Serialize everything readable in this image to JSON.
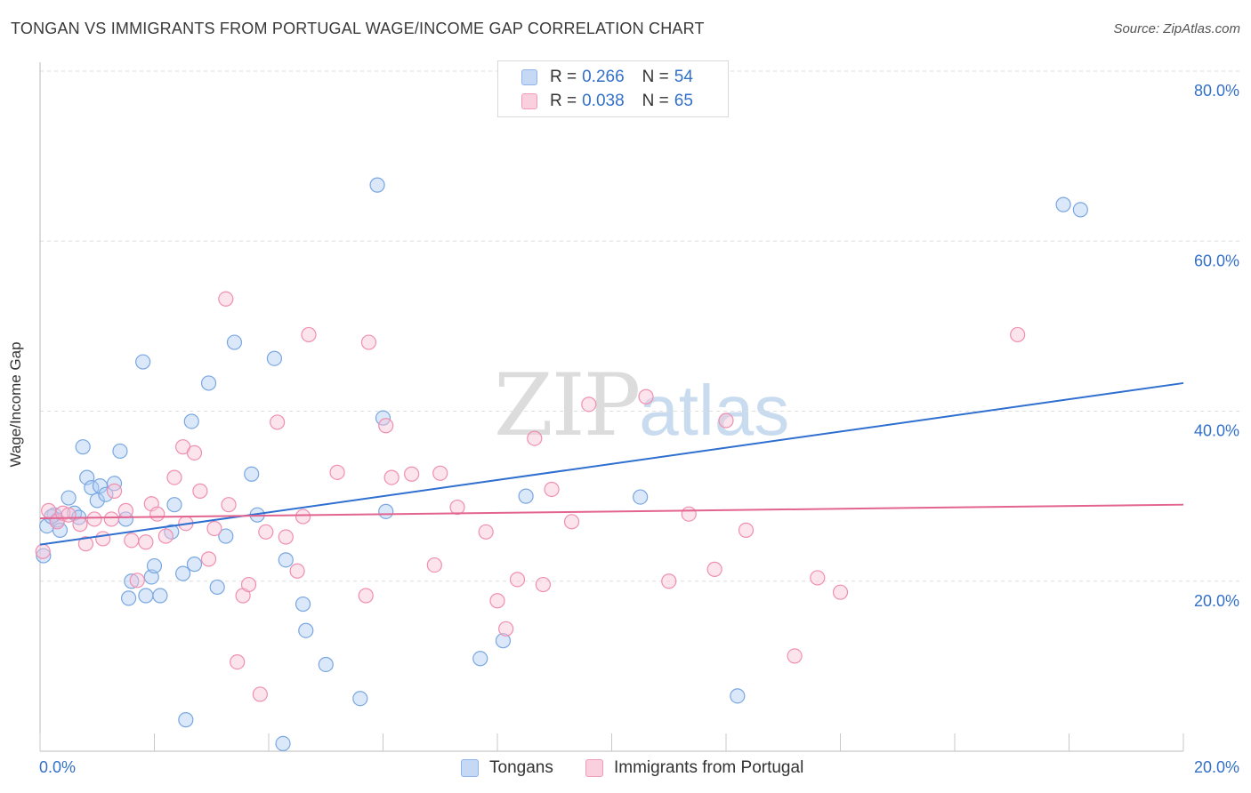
{
  "title": "TONGAN VS IMMIGRANTS FROM PORTUGAL WAGE/INCOME GAP CORRELATION CHART",
  "source": "Source: ZipAtlas.com",
  "watermark": {
    "zip": "ZIP",
    "atlas": "atlas"
  },
  "legend": {
    "rows": [
      {
        "r_label": "R =",
        "r_value": "0.266",
        "n_label": "N =",
        "n_value": "54",
        "color": "#8fb4e8",
        "fill": "#c5d9f4"
      },
      {
        "r_label": "R =",
        "r_value": "0.038",
        "n_label": "N =",
        "n_value": "65",
        "color": "#f29bb8",
        "fill": "#fad0de"
      }
    ]
  },
  "bottom_legend": [
    "Tongans",
    "Immigrants from Portugal"
  ],
  "chart_data": {
    "type": "scatter",
    "ylabel": "Wage/Income Gap",
    "xlim": [
      0,
      20
    ],
    "ylim": [
      0,
      80
    ],
    "x_tick_labels": [
      "0.0%",
      "20.0%"
    ],
    "y_tick_labels": [
      "20.0%",
      "40.0%",
      "60.0%",
      "80.0%"
    ],
    "y_ticks": [
      20,
      40,
      60,
      80
    ],
    "series": [
      {
        "name": "Tongans",
        "color": "#7aa7e0",
        "fill": "rgba(173,203,243,0.45)",
        "line_color": "#2f6fcf",
        "trend": {
          "x": [
            0,
            20
          ],
          "y": [
            24.3,
            43.3
          ]
        },
        "points": [
          [
            0.06,
            23.0
          ],
          [
            0.12,
            26.5
          ],
          [
            0.25,
            27.8
          ],
          [
            0.3,
            27.2
          ],
          [
            0.35,
            26.0
          ],
          [
            0.5,
            29.8
          ],
          [
            0.6,
            28.0
          ],
          [
            0.68,
            27.5
          ],
          [
            0.75,
            35.8
          ],
          [
            0.82,
            32.2
          ],
          [
            0.9,
            31.0
          ],
          [
            1.0,
            29.5
          ],
          [
            1.05,
            31.2
          ],
          [
            1.15,
            30.2
          ],
          [
            1.3,
            31.5
          ],
          [
            1.4,
            35.3
          ],
          [
            1.5,
            27.3
          ],
          [
            1.55,
            18.0
          ],
          [
            1.6,
            20.0
          ],
          [
            1.8,
            45.8
          ],
          [
            1.85,
            18.3
          ],
          [
            1.95,
            20.5
          ],
          [
            2.0,
            21.8
          ],
          [
            2.1,
            18.3
          ],
          [
            2.3,
            25.8
          ],
          [
            2.35,
            29.0
          ],
          [
            2.5,
            20.9
          ],
          [
            2.55,
            3.7
          ],
          [
            2.65,
            38.8
          ],
          [
            2.7,
            22.0
          ],
          [
            2.95,
            43.3
          ],
          [
            3.1,
            19.3
          ],
          [
            3.25,
            25.3
          ],
          [
            3.4,
            48.1
          ],
          [
            3.7,
            32.6
          ],
          [
            3.8,
            27.8
          ],
          [
            4.1,
            46.2
          ],
          [
            4.25,
            0.9
          ],
          [
            4.3,
            22.5
          ],
          [
            4.6,
            17.3
          ],
          [
            4.65,
            14.2
          ],
          [
            5.0,
            10.2
          ],
          [
            5.6,
            6.2
          ],
          [
            5.9,
            66.6
          ],
          [
            6.0,
            39.2
          ],
          [
            6.05,
            28.2
          ],
          [
            7.7,
            10.9
          ],
          [
            8.1,
            13.0
          ],
          [
            8.5,
            30.0
          ],
          [
            10.5,
            29.9
          ],
          [
            12.2,
            6.5
          ],
          [
            17.9,
            64.3
          ],
          [
            18.2,
            63.7
          ],
          [
            0.2,
            27.6
          ]
        ]
      },
      {
        "name": "Immigrants from Portugal",
        "color": "#f08fb0",
        "fill": "rgba(248,196,214,0.45)",
        "line_color": "#e3648f",
        "trend": {
          "x": [
            0,
            20
          ],
          "y": [
            27.4,
            29.0
          ]
        },
        "points": [
          [
            0.05,
            23.5
          ],
          [
            0.15,
            28.3
          ],
          [
            0.3,
            27.0
          ],
          [
            0.4,
            28.0
          ],
          [
            0.5,
            27.8
          ],
          [
            0.7,
            26.7
          ],
          [
            0.8,
            24.4
          ],
          [
            0.95,
            27.3
          ],
          [
            1.1,
            25.0
          ],
          [
            1.25,
            27.3
          ],
          [
            1.3,
            30.6
          ],
          [
            1.5,
            28.3
          ],
          [
            1.6,
            24.8
          ],
          [
            1.7,
            20.1
          ],
          [
            1.85,
            24.6
          ],
          [
            1.95,
            29.1
          ],
          [
            2.05,
            27.9
          ],
          [
            2.2,
            25.3
          ],
          [
            2.35,
            32.2
          ],
          [
            2.5,
            35.8
          ],
          [
            2.55,
            26.8
          ],
          [
            2.7,
            35.1
          ],
          [
            2.8,
            30.6
          ],
          [
            2.95,
            22.6
          ],
          [
            3.05,
            26.2
          ],
          [
            3.25,
            53.2
          ],
          [
            3.3,
            29.0
          ],
          [
            3.45,
            10.5
          ],
          [
            3.55,
            18.3
          ],
          [
            3.65,
            19.6
          ],
          [
            3.85,
            6.7
          ],
          [
            3.95,
            25.8
          ],
          [
            4.15,
            38.7
          ],
          [
            4.3,
            25.2
          ],
          [
            4.5,
            21.2
          ],
          [
            4.6,
            27.6
          ],
          [
            4.7,
            49.0
          ],
          [
            5.2,
            32.8
          ],
          [
            5.7,
            18.3
          ],
          [
            5.75,
            48.1
          ],
          [
            6.05,
            38.3
          ],
          [
            6.15,
            32.2
          ],
          [
            6.5,
            32.6
          ],
          [
            6.9,
            21.9
          ],
          [
            7.0,
            32.7
          ],
          [
            7.3,
            28.7
          ],
          [
            7.8,
            25.8
          ],
          [
            8.0,
            17.7
          ],
          [
            8.15,
            14.4
          ],
          [
            8.35,
            20.2
          ],
          [
            8.65,
            36.8
          ],
          [
            8.8,
            19.6
          ],
          [
            8.95,
            30.8
          ],
          [
            9.3,
            27.0
          ],
          [
            9.6,
            40.8
          ],
          [
            10.6,
            41.7
          ],
          [
            11.0,
            20.0
          ],
          [
            11.35,
            27.9
          ],
          [
            11.8,
            21.4
          ],
          [
            12.0,
            38.9
          ],
          [
            12.35,
            26.0
          ],
          [
            13.2,
            11.2
          ],
          [
            13.6,
            20.4
          ],
          [
            14.0,
            18.7
          ],
          [
            17.1,
            49.0
          ]
        ]
      }
    ]
  }
}
